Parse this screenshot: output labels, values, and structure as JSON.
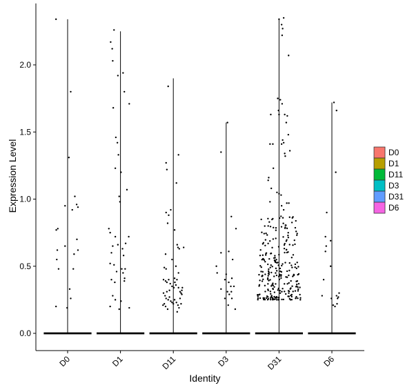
{
  "chart_data": {
    "type": "violin",
    "xlabel": "Identity",
    "ylabel": "Expression Level",
    "categories": [
      "D0",
      "D1",
      "D11",
      "D3",
      "D31",
      "D6"
    ],
    "yticks": [
      0.0,
      0.5,
      1.0,
      1.5,
      2.0
    ],
    "ytick_labels": [
      "0.0",
      "0.5",
      "1.0",
      "1.5",
      "2.0"
    ],
    "ylim": [
      -0.13,
      2.4
    ],
    "violin_max": [
      2.34,
      2.25,
      1.9,
      1.57,
      2.34,
      1.72
    ],
    "legend": {
      "placement": "right",
      "entries": [
        {
          "label": "D0",
          "color": "#F8766D"
        },
        {
          "label": "D1",
          "color": "#B79F00"
        },
        {
          "label": "D11",
          "color": "#00BA38"
        },
        {
          "label": "D3",
          "color": "#00BFC4"
        },
        {
          "label": "D31",
          "color": "#619CFF"
        },
        {
          "label": "D6",
          "color": "#F564E3"
        }
      ]
    },
    "points": [
      [
        [
          -0.45,
          2.34
        ],
        [
          0.12,
          1.8
        ],
        [
          0.28,
          1.02
        ],
        [
          0.4,
          0.94
        ],
        [
          0.35,
          0.96
        ],
        [
          -0.1,
          0.95
        ],
        [
          -0.44,
          0.77
        ],
        [
          -0.38,
          0.78
        ],
        [
          0.05,
          1.31
        ],
        [
          0.18,
          0.92
        ],
        [
          0.36,
          0.7
        ],
        [
          0.4,
          0.62
        ],
        [
          0.25,
          0.59
        ],
        [
          0.22,
          0.48
        ],
        [
          0.08,
          0.33
        ],
        [
          0.12,
          0.26
        ],
        [
          -0.45,
          0.2
        ],
        [
          -0.02,
          0.19
        ],
        [
          -0.4,
          0.62
        ],
        [
          -0.42,
          0.55
        ],
        [
          -0.35,
          0.48
        ],
        [
          -0.1,
          0.65
        ]
      ],
      [
        [
          -0.25,
          2.26
        ],
        [
          -0.38,
          2.17
        ],
        [
          -0.32,
          2.12
        ],
        [
          -0.3,
          2.03
        ],
        [
          -0.1,
          1.92
        ],
        [
          0.1,
          1.94
        ],
        [
          0.15,
          1.8
        ],
        [
          0.34,
          1.71
        ],
        [
          -0.28,
          1.68
        ],
        [
          -0.18,
          1.46
        ],
        [
          -0.12,
          1.42
        ],
        [
          -0.08,
          1.33
        ],
        [
          -0.2,
          1.23
        ],
        [
          0.02,
          1.2
        ],
        [
          -0.05,
          1.02
        ],
        [
          -0.02,
          0.98
        ],
        [
          0.25,
          1.07
        ],
        [
          0.32,
          0.72
        ],
        [
          -0.4,
          0.75
        ],
        [
          -0.2,
          0.72
        ],
        [
          -0.3,
          0.65
        ],
        [
          -0.35,
          0.6
        ],
        [
          -0.1,
          0.66
        ],
        [
          0.08,
          0.63
        ],
        [
          0.12,
          0.58
        ],
        [
          -0.25,
          0.51
        ],
        [
          -0.4,
          0.52
        ],
        [
          -0.15,
          0.46
        ],
        [
          0.05,
          0.48
        ],
        [
          0.1,
          0.45
        ],
        [
          0.16,
          0.41
        ],
        [
          0.18,
          0.48
        ],
        [
          -0.35,
          0.4
        ],
        [
          -0.22,
          0.38
        ],
        [
          0.15,
          0.39
        ],
        [
          -0.3,
          0.28
        ],
        [
          -0.2,
          0.25
        ],
        [
          -0.4,
          0.2
        ],
        [
          0.02,
          0.24
        ],
        [
          0.34,
          0.19
        ],
        [
          -0.05,
          0.18
        ],
        [
          0.2,
          0.67
        ],
        [
          -0.45,
          0.78
        ]
      ],
      [
        [
          -0.2,
          1.84
        ],
        [
          -0.28,
          1.27
        ],
        [
          -0.25,
          1.22
        ],
        [
          0.2,
          1.33
        ],
        [
          0.12,
          1.12
        ],
        [
          -0.28,
          0.9
        ],
        [
          -0.18,
          0.88
        ],
        [
          -0.1,
          0.92
        ],
        [
          -0.22,
          0.82
        ],
        [
          0.05,
          0.77
        ],
        [
          0.15,
          0.66
        ],
        [
          0.18,
          0.64
        ],
        [
          0.23,
          0.63
        ],
        [
          0.4,
          0.64
        ],
        [
          -0.3,
          0.59
        ],
        [
          -0.05,
          0.55
        ],
        [
          0.1,
          0.5
        ],
        [
          -0.35,
          0.49
        ],
        [
          -0.28,
          0.48
        ],
        [
          -0.38,
          0.4
        ],
        [
          -0.3,
          0.39
        ],
        [
          -0.25,
          0.38
        ],
        [
          -0.12,
          0.37
        ],
        [
          -0.05,
          0.35
        ],
        [
          0.02,
          0.34
        ],
        [
          0.1,
          0.36
        ],
        [
          0.2,
          0.34
        ],
        [
          0.26,
          0.31
        ],
        [
          0.3,
          0.3
        ],
        [
          0.33,
          0.32
        ],
        [
          -0.38,
          0.3
        ],
        [
          -0.32,
          0.28
        ],
        [
          -0.28,
          0.26
        ],
        [
          -0.2,
          0.25
        ],
        [
          -0.15,
          0.27
        ],
        [
          -0.1,
          0.24
        ],
        [
          -0.05,
          0.23
        ],
        [
          0.0,
          0.22
        ],
        [
          0.05,
          0.25
        ],
        [
          0.12,
          0.23
        ],
        [
          0.18,
          0.21
        ],
        [
          0.22,
          0.19
        ],
        [
          -0.35,
          0.22
        ],
        [
          -0.3,
          0.2
        ],
        [
          -0.22,
          0.18
        ],
        [
          0.15,
          0.16
        ],
        [
          -0.4,
          0.21
        ],
        [
          0.05,
          0.41
        ],
        [
          -0.15,
          0.32
        ],
        [
          0.26,
          0.26
        ],
        [
          0.3,
          0.22
        ],
        [
          0.35,
          0.34
        ],
        [
          -0.18,
          0.4
        ],
        [
          0.06,
          0.38
        ],
        [
          0.14,
          0.4
        ],
        [
          0.33,
          0.29
        ],
        [
          -0.25,
          0.31
        ],
        [
          0.2,
          0.45
        ]
      ],
      [
        [
          0.05,
          1.57
        ],
        [
          -0.2,
          1.35
        ],
        [
          0.2,
          0.87
        ],
        [
          0.38,
          0.78
        ],
        [
          0.1,
          0.61
        ],
        [
          -0.2,
          0.6
        ],
        [
          0.25,
          0.55
        ],
        [
          -0.38,
          0.5
        ],
        [
          -0.35,
          0.45
        ],
        [
          0.0,
          0.44
        ],
        [
          -0.05,
          0.4
        ],
        [
          0.1,
          0.38
        ],
        [
          0.18,
          0.35
        ],
        [
          0.22,
          0.41
        ],
        [
          0.3,
          0.35
        ],
        [
          -0.2,
          0.33
        ],
        [
          0.05,
          0.31
        ],
        [
          0.12,
          0.29
        ],
        [
          -0.05,
          0.26
        ],
        [
          0.22,
          0.26
        ],
        [
          0.35,
          0.18
        ],
        [
          0.08,
          0.21
        ],
        [
          0.2,
          0.31
        ]
      ],
      [
        [
          0.0,
          2.34
        ],
        [
          0.18,
          2.35
        ],
        [
          0.1,
          2.3
        ],
        [
          0.14,
          2.27
        ],
        [
          0.12,
          2.22
        ],
        [
          0.37,
          2.07
        ],
        [
          -0.05,
          1.75
        ],
        [
          0.05,
          1.74
        ],
        [
          0.12,
          1.71
        ],
        [
          -0.02,
          1.66
        ],
        [
          0.0,
          1.63
        ],
        [
          -0.32,
          1.63
        ],
        [
          0.22,
          1.63
        ],
        [
          0.32,
          1.62
        ],
        [
          0.28,
          1.57
        ],
        [
          0.36,
          1.48
        ],
        [
          0.14,
          1.44
        ],
        [
          -0.35,
          1.41
        ],
        [
          -0.24,
          1.41
        ],
        [
          0.1,
          1.41
        ],
        [
          0.18,
          1.42
        ],
        [
          0.42,
          1.36
        ],
        [
          0.22,
          1.34
        ],
        [
          0.24,
          1.32
        ],
        [
          -0.22,
          1.23
        ],
        [
          -0.4,
          1.16
        ],
        [
          -0.42,
          1.14
        ],
        [
          -0.3,
          1.08
        ],
        [
          -0.08,
          1.05
        ],
        [
          0.0,
          1.04
        ],
        [
          0.08,
          1.03
        ],
        [
          -0.35,
          0.98
        ],
        [
          0.3,
          0.97
        ],
        [
          0.38,
          0.97
        ],
        [
          0.1,
          0.95
        ],
        [
          0.18,
          0.92
        ],
        [
          -0.42,
          0.8
        ]
      ],
      [
        [
          0.08,
          1.72
        ],
        [
          0.18,
          1.66
        ],
        [
          0.15,
          1.2
        ],
        [
          -0.2,
          0.9
        ],
        [
          -0.05,
          0.69
        ],
        [
          -0.25,
          0.72
        ],
        [
          -0.22,
          0.65
        ],
        [
          -0.25,
          0.61
        ],
        [
          -0.05,
          0.5
        ],
        [
          -0.32,
          0.4
        ],
        [
          -0.38,
          0.28
        ],
        [
          0.05,
          0.21
        ],
        [
          0.12,
          0.2
        ],
        [
          0.2,
          0.22
        ],
        [
          0.22,
          0.26
        ],
        [
          0.28,
          0.3
        ],
        [
          0.25,
          0.27
        ],
        [
          -0.02,
          0.26
        ],
        [
          0.18,
          0.28
        ]
      ]
    ]
  }
}
